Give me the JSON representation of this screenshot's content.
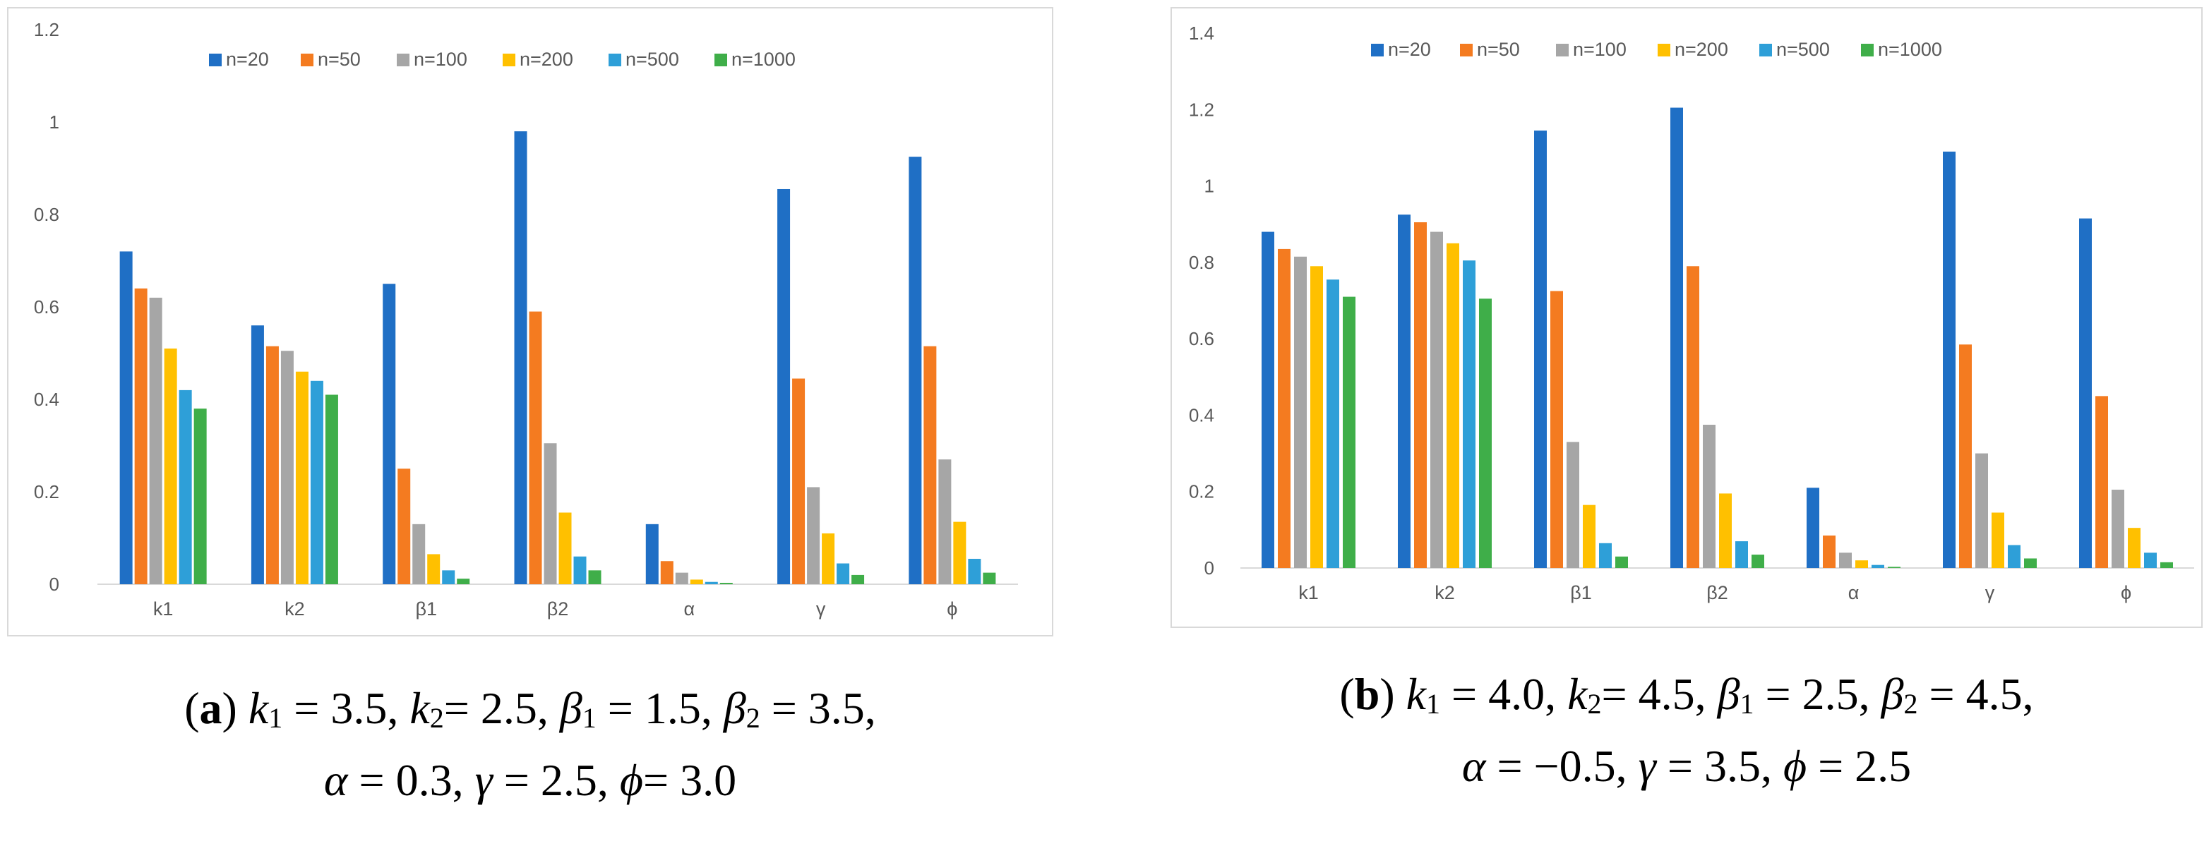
{
  "chart_data": [
    {
      "type": "bar",
      "panel": "a",
      "categories": [
        "k1",
        "k2",
        "β1",
        "β2",
        "α",
        "γ",
        "ϕ"
      ],
      "ylim": [
        0,
        1.2
      ],
      "yticks": [
        "0",
        "0.2",
        "0.4",
        "0.6",
        "0.8",
        "1",
        "1.2"
      ],
      "yticks_values": [
        0,
        0.2,
        0.4,
        0.6,
        0.8,
        1.0,
        1.2
      ],
      "grid": false,
      "legend_position": "top",
      "series": [
        {
          "name": "n=20",
          "color": "#1f6fc5",
          "values": [
            0.72,
            0.56,
            0.65,
            0.98,
            0.13,
            0.855,
            0.925
          ]
        },
        {
          "name": "n=50",
          "color": "#f47b20",
          "values": [
            0.64,
            0.515,
            0.25,
            0.59,
            0.05,
            0.445,
            0.515
          ]
        },
        {
          "name": "n=100",
          "color": "#a6a6a6",
          "values": [
            0.62,
            0.505,
            0.13,
            0.305,
            0.025,
            0.21,
            0.27
          ]
        },
        {
          "name": "n=200",
          "color": "#ffc000",
          "values": [
            0.51,
            0.46,
            0.065,
            0.155,
            0.01,
            0.11,
            0.135
          ]
        },
        {
          "name": "n=500",
          "color": "#2e9fd8",
          "values": [
            0.42,
            0.44,
            0.03,
            0.06,
            0.005,
            0.045,
            0.055
          ]
        },
        {
          "name": "n=1000",
          "color": "#3fae49",
          "values": [
            0.38,
            0.41,
            0.012,
            0.03,
            0.003,
            0.02,
            0.025
          ]
        }
      ]
    },
    {
      "type": "bar",
      "panel": "b",
      "categories": [
        "k1",
        "k2",
        "β1",
        "β2",
        "α",
        "γ",
        "ϕ"
      ],
      "ylim": [
        0,
        1.4
      ],
      "yticks": [
        "0",
        "0.2",
        "0.4",
        "0.6",
        "0.8",
        "1",
        "1.2",
        "1.4"
      ],
      "yticks_values": [
        0,
        0.2,
        0.4,
        0.6,
        0.8,
        1.0,
        1.2,
        1.4
      ],
      "grid": false,
      "legend_position": "top",
      "series": [
        {
          "name": "n=20",
          "color": "#1f6fc5",
          "values": [
            0.88,
            0.925,
            1.145,
            1.205,
            0.21,
            1.09,
            0.915
          ]
        },
        {
          "name": "n=50",
          "color": "#f47b20",
          "values": [
            0.835,
            0.905,
            0.725,
            0.79,
            0.085,
            0.585,
            0.45
          ]
        },
        {
          "name": "n=100",
          "color": "#a6a6a6",
          "values": [
            0.815,
            0.88,
            0.33,
            0.375,
            0.04,
            0.3,
            0.205
          ]
        },
        {
          "name": "n=200",
          "color": "#ffc000",
          "values": [
            0.79,
            0.85,
            0.165,
            0.195,
            0.02,
            0.145,
            0.105
          ]
        },
        {
          "name": "n=500",
          "color": "#2e9fd8",
          "values": [
            0.755,
            0.805,
            0.065,
            0.07,
            0.008,
            0.06,
            0.04
          ]
        },
        {
          "name": "n=1000",
          "color": "#3fae49",
          "values": [
            0.71,
            0.705,
            0.03,
            0.035,
            0.003,
            0.025,
            0.015
          ]
        }
      ]
    }
  ],
  "captions": {
    "a": {
      "tag": "a",
      "line1": {
        "k1": "k",
        "k1_sub": "1",
        "k1_val": " = 3.5, ",
        "k2": "k",
        "k2_sub": "2",
        "k2_val": "= 2.5, ",
        "b1": "β",
        "b1_sub": "1",
        "b1_val": " = 1.5, ",
        "b2": "β",
        "b2_sub": "2",
        "b2_val": " = 3.5,"
      },
      "line2": {
        "a": "α",
        "a_val": " = 0.3, ",
        "g": "γ",
        "g_val": " = 2.5, ",
        "p": "ϕ",
        "p_val": "= 3.0"
      }
    },
    "b": {
      "tag": "b",
      "line1": {
        "k1": "k",
        "k1_sub": "1",
        "k1_val": " = 4.0, ",
        "k2": "k",
        "k2_sub": "2",
        "k2_val": "= 4.5, ",
        "b1": "β",
        "b1_sub": "1",
        "b1_val": " = 2.5, ",
        "b2": "β",
        "b2_sub": "2",
        "b2_val": " = 4.5,"
      },
      "line2": {
        "a": "α",
        "a_val": " = −0.5, ",
        "g": "γ",
        "g_val": " = 3.5, ",
        "p": "ϕ",
        "p_val": " = 2.5"
      }
    }
  }
}
